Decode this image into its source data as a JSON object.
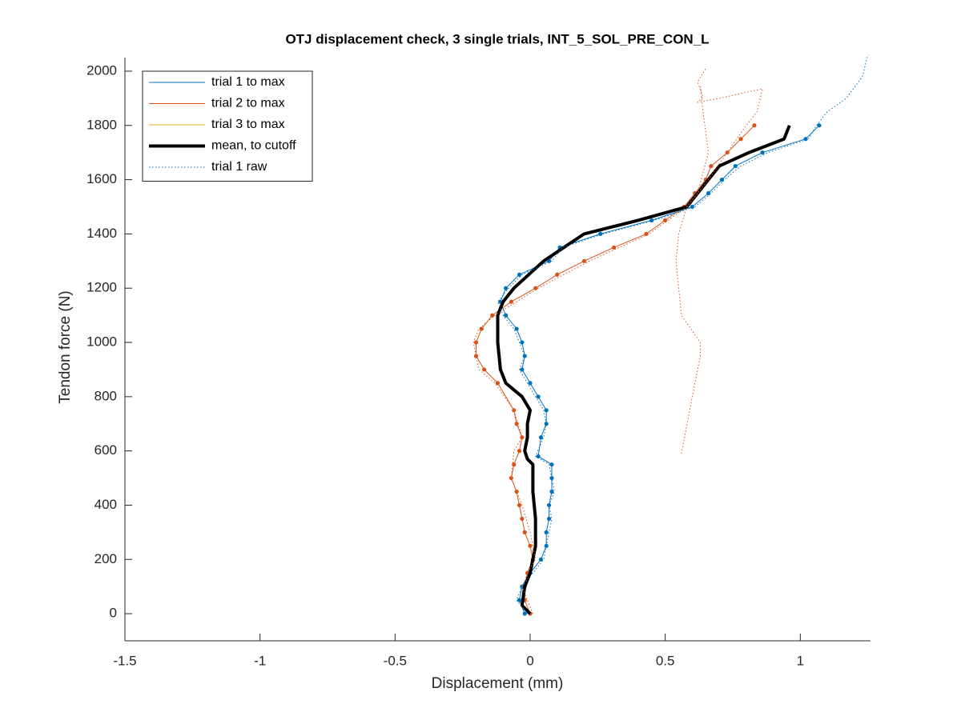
{
  "chart_data": {
    "type": "line",
    "title": "OTJ displacement check, 3 single trials, INT_5_SOL_PRE_CON_L",
    "x_label": "Displacement (mm)",
    "y_label": "Tendon force (N)",
    "xlim": [
      -1.5,
      1.26
    ],
    "ylim": [
      -100,
      2050
    ],
    "xticks": [
      -1.5,
      -1,
      -0.5,
      0,
      0.5,
      1
    ],
    "yticks": [
      0,
      200,
      400,
      600,
      800,
      1000,
      1200,
      1400,
      1600,
      1800,
      2000
    ],
    "legend": "upper-left",
    "series": [
      {
        "name": "trial 1 to max",
        "color": "#0072BD",
        "width": 1,
        "linestyle": "solid",
        "marker": true,
        "x": [
          -0.02,
          -0.04,
          -0.03,
          0.0,
          0.04,
          0.06,
          0.06,
          0.07,
          0.07,
          0.08,
          0.08,
          0.08,
          0.03,
          0.04,
          0.06,
          0.06,
          0.03,
          0.0,
          -0.03,
          -0.02,
          -0.03,
          -0.05,
          -0.09,
          -0.11,
          -0.09,
          -0.04,
          0.07,
          0.11,
          0.26,
          0.45,
          0.6,
          0.66,
          0.71,
          0.76,
          0.86,
          1.02,
          1.07
        ],
        "values": [
          0,
          50,
          100,
          150,
          200,
          250,
          300,
          350,
          400,
          450,
          500,
          550,
          580,
          650,
          700,
          750,
          800,
          850,
          900,
          950,
          1000,
          1050,
          1100,
          1150,
          1200,
          1250,
          1300,
          1350,
          1400,
          1450,
          1500,
          1550,
          1600,
          1650,
          1700,
          1750,
          1800
        ]
      },
      {
        "name": "trial 2 to max",
        "color": "#D95319",
        "width": 1,
        "linestyle": "solid",
        "marker": true,
        "x": [
          0.0,
          -0.02,
          -0.02,
          -0.01,
          0.01,
          0.0,
          -0.02,
          -0.03,
          -0.04,
          -0.05,
          -0.07,
          -0.06,
          -0.04,
          -0.03,
          -0.05,
          -0.06,
          -0.12,
          -0.17,
          -0.2,
          -0.2,
          -0.18,
          -0.14,
          -0.07,
          0.02,
          0.1,
          0.2,
          0.31,
          0.43,
          0.5,
          0.57,
          0.61,
          0.65,
          0.67,
          0.73,
          0.78,
          0.83
        ],
        "values": [
          0,
          50,
          100,
          150,
          200,
          250,
          300,
          350,
          400,
          450,
          500,
          550,
          600,
          650,
          700,
          750,
          850,
          900,
          950,
          1000,
          1050,
          1100,
          1150,
          1200,
          1250,
          1300,
          1350,
          1400,
          1450,
          1500,
          1550,
          1600,
          1650,
          1700,
          1750,
          1800
        ]
      },
      {
        "name": "trial 3 to max",
        "color": "#EDB120",
        "width": 1,
        "linestyle": "solid",
        "marker": false,
        "x": [],
        "values": []
      },
      {
        "name": "mean, to cutoff",
        "color": "#000000",
        "width": 4,
        "linestyle": "solid",
        "marker": false,
        "x": [
          0.0,
          -0.03,
          -0.02,
          0.0,
          0.02,
          0.02,
          0.01,
          0.01,
          -0.01,
          -0.02,
          -0.01,
          -0.01,
          0.0,
          -0.03,
          -0.09,
          -0.11,
          -0.12,
          -0.12,
          -0.1,
          -0.06,
          0.05,
          0.2,
          0.4,
          0.58,
          0.62,
          0.7,
          0.81,
          0.94,
          0.96
        ],
        "values": [
          0,
          30,
          100,
          150,
          250,
          350,
          450,
          550,
          570,
          600,
          650,
          700,
          750,
          800,
          850,
          900,
          1000,
          1100,
          1150,
          1200,
          1300,
          1400,
          1450,
          1500,
          1550,
          1650,
          1700,
          1750,
          1800
        ]
      },
      {
        "name": "trial 1 raw",
        "color": "#0072BD",
        "width": 1,
        "linestyle": "dotted",
        "marker": false,
        "x": [
          -0.01,
          -0.05,
          -0.03,
          0.01,
          0.05,
          0.06,
          0.07,
          0.08,
          0.07,
          0.09,
          0.08,
          0.07,
          0.02,
          0.05,
          0.06,
          0.05,
          0.02,
          -0.01,
          -0.04,
          -0.02,
          -0.04,
          -0.06,
          -0.1,
          -0.12,
          -0.08,
          -0.03,
          0.08,
          0.12,
          0.27,
          0.46,
          0.61,
          0.67,
          0.72,
          0.78,
          0.88,
          1.03,
          1.06,
          1.1,
          1.17,
          1.23,
          1.25
        ],
        "values": [
          0,
          50,
          100,
          150,
          200,
          250,
          300,
          350,
          400,
          450,
          500,
          550,
          580,
          650,
          700,
          750,
          800,
          850,
          900,
          950,
          1000,
          1050,
          1100,
          1150,
          1200,
          1250,
          1300,
          1350,
          1400,
          1450,
          1500,
          1550,
          1600,
          1650,
          1700,
          1750,
          1800,
          1850,
          1900,
          1980,
          2060
        ]
      },
      {
        "color": "#D95319",
        "width": 1,
        "linestyle": "dotted",
        "marker": false,
        "x": [
          0.01,
          -0.03,
          -0.01,
          0.02,
          0.0,
          -0.03,
          -0.07,
          -0.06,
          -0.03,
          -0.06,
          -0.13,
          -0.19,
          -0.21,
          -0.19,
          -0.13,
          0.03,
          0.22,
          0.44,
          0.58,
          0.66,
          0.73,
          0.8,
          0.84,
          0.86,
          0.7,
          0.62,
          0.64,
          0.62,
          0.65,
          null,
          0.56,
          0.6,
          0.63,
          0.63,
          0.56,
          0.54,
          0.55,
          0.58,
          0.62,
          0.66,
          0.64,
          0.63
        ],
        "values": [
          0,
          100,
          150,
          200,
          300,
          400,
          500,
          600,
          650,
          750,
          850,
          900,
          1000,
          1050,
          1100,
          1200,
          1300,
          1400,
          1500,
          1600,
          1700,
          1800,
          1850,
          1935,
          1900,
          1885,
          1905,
          1960,
          2010,
          null,
          590,
          800,
          950,
          1000,
          1100,
          1300,
          1400,
          1500,
          1550,
          1700,
          1850,
          1950
        ]
      }
    ]
  }
}
